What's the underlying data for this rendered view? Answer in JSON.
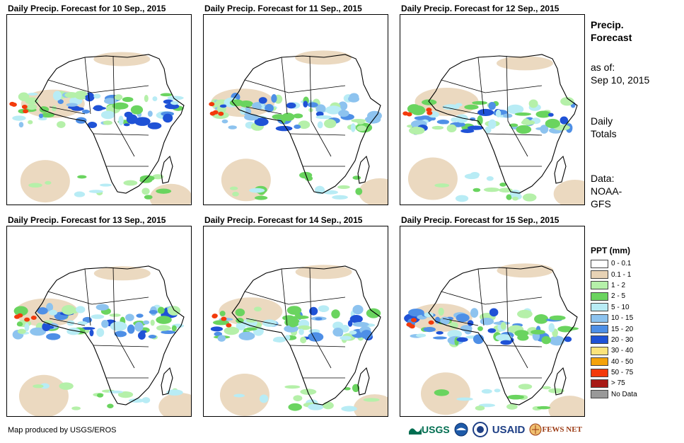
{
  "panels": [
    {
      "title": "Daily Precip. Forecast for 10 Sep., 2015"
    },
    {
      "title": "Daily Precip. Forecast for 11 Sep., 2015"
    },
    {
      "title": "Daily Precip. Forecast for 12 Sep., 2015"
    },
    {
      "title": "Daily Precip. Forecast for 13 Sep., 2015"
    },
    {
      "title": "Daily Precip. Forecast for 14 Sep., 2015"
    },
    {
      "title": "Daily Precip. Forecast for 15 Sep., 2015"
    }
  ],
  "sidebar": {
    "title_line1": "Precip.",
    "title_line2": "Forecast",
    "asof_label": "as of:",
    "asof_date": "Sep 10, 2015",
    "totals_line1": "Daily",
    "totals_line2": "Totals",
    "data_label": "Data:",
    "data_line1": "NOAA-",
    "data_line2": "GFS"
  },
  "legend": {
    "title": "PPT (mm)",
    "items": [
      {
        "label": "0 - 0.1",
        "color": "#ffffff"
      },
      {
        "label": "0.1 - 1",
        "color": "#e7d2b5"
      },
      {
        "label": "1 - 2",
        "color": "#b5f0a9"
      },
      {
        "label": "2 - 5",
        "color": "#6ad45f"
      },
      {
        "label": "5 - 10",
        "color": "#b8ecf5"
      },
      {
        "label": "10 - 15",
        "color": "#8dc3ef"
      },
      {
        "label": "15 - 20",
        "color": "#4e8fe6"
      },
      {
        "label": "20 - 30",
        "color": "#1f52d6"
      },
      {
        "label": "30 - 40",
        "color": "#fbe37a"
      },
      {
        "label": "40 - 50",
        "color": "#f4a20a"
      },
      {
        "label": "50 - 75",
        "color": "#f33a0b"
      },
      {
        "label": "> 75",
        "color": "#a81a16"
      },
      {
        "label": "No Data",
        "color": "#999999"
      }
    ]
  },
  "footer": {
    "text": "Map produced by USGS/EROS"
  },
  "logos": {
    "usgs": "USGS",
    "usaid": "USAID",
    "fewsnet": "FEWS NET"
  }
}
